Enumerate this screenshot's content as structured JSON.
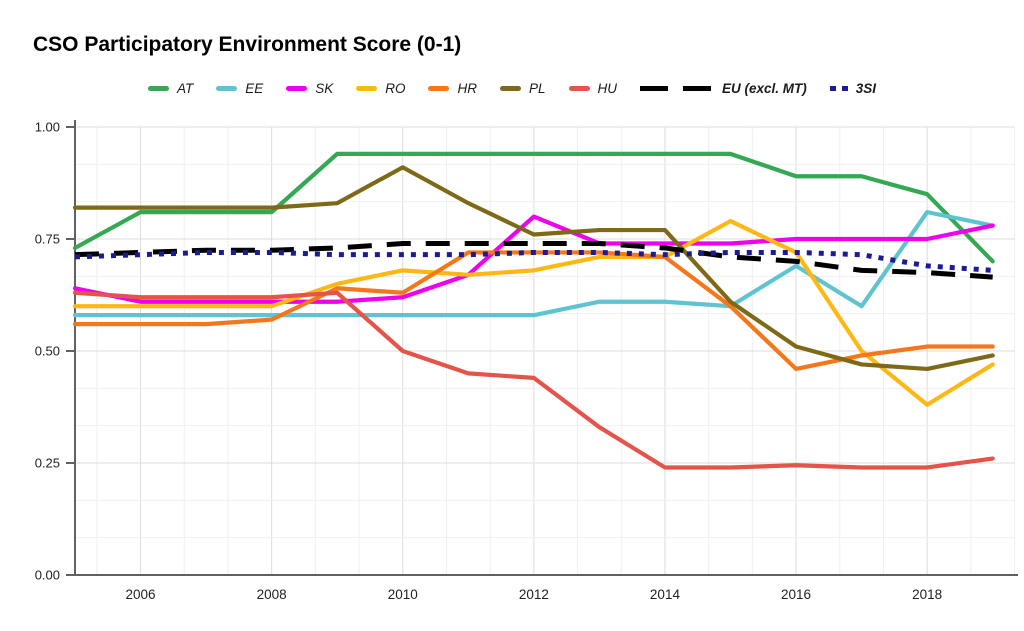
{
  "title": "CSO Participatory Environment Score (0-1)",
  "chart_data": {
    "type": "line",
    "title": "CSO Participatory Environment Score (0-1)",
    "xlabel": "",
    "ylabel": "",
    "xlim": [
      2005,
      2019.33
    ],
    "ylim": [
      0,
      1
    ],
    "grid": "major and minor, light gray, minors divide majors in thirds",
    "legend_position": "top",
    "x": [
      2005,
      2006,
      2007,
      2008,
      2009,
      2010,
      2011,
      2012,
      2013,
      2014,
      2015,
      2016,
      2017,
      2018,
      2019
    ],
    "x_ticks": [
      2006,
      2008,
      2010,
      2012,
      2014,
      2016,
      2018
    ],
    "x_tick_labels": [
      "2006",
      "2008",
      "2010",
      "2012",
      "2014",
      "2016",
      "2018"
    ],
    "y_ticks": [
      0,
      0.25,
      0.5,
      0.75,
      1
    ],
    "y_tick_labels": [
      "0.00",
      "0.25",
      "0.50",
      "0.75",
      "1.00"
    ],
    "series": [
      {
        "name": "AT",
        "color": "#34A853",
        "style": "solid",
        "emphasis": false,
        "values": [
          0.73,
          0.81,
          0.81,
          0.81,
          0.94,
          0.94,
          0.94,
          0.94,
          0.94,
          0.94,
          0.94,
          0.89,
          0.89,
          0.85,
          0.7
        ]
      },
      {
        "name": "EE",
        "color": "#5FC4CF",
        "style": "solid",
        "emphasis": false,
        "values": [
          0.58,
          0.58,
          0.58,
          0.58,
          0.58,
          0.58,
          0.58,
          0.58,
          0.61,
          0.61,
          0.6,
          0.69,
          0.6,
          0.81,
          0.78
        ]
      },
      {
        "name": "SK",
        "color": "#EE00EE",
        "style": "solid",
        "emphasis": false,
        "values": [
          0.64,
          0.61,
          0.61,
          0.61,
          0.61,
          0.62,
          0.67,
          0.8,
          0.74,
          0.74,
          0.74,
          0.75,
          0.75,
          0.75,
          0.78
        ]
      },
      {
        "name": "RO",
        "color": "#FDB813",
        "style": "solid",
        "emphasis": false,
        "values": [
          0.6,
          0.6,
          0.6,
          0.6,
          0.65,
          0.68,
          0.67,
          0.68,
          0.71,
          0.71,
          0.79,
          0.72,
          0.5,
          0.38,
          0.47
        ]
      },
      {
        "name": "HR",
        "color": "#F4771B",
        "style": "solid",
        "emphasis": false,
        "values": [
          0.56,
          0.56,
          0.56,
          0.57,
          0.64,
          0.63,
          0.72,
          0.72,
          0.72,
          0.71,
          0.6,
          0.46,
          0.49,
          0.51,
          0.51
        ]
      },
      {
        "name": "PL",
        "color": "#7D6918",
        "style": "solid",
        "emphasis": false,
        "values": [
          0.82,
          0.82,
          0.82,
          0.82,
          0.83,
          0.91,
          0.83,
          0.76,
          0.77,
          0.77,
          0.61,
          0.51,
          0.47,
          0.46,
          0.49
        ]
      },
      {
        "name": "HU",
        "color": "#E4544A",
        "style": "solid",
        "emphasis": false,
        "values": [
          0.63,
          0.62,
          0.62,
          0.62,
          0.63,
          0.5,
          0.45,
          0.44,
          0.33,
          0.24,
          0.24,
          0.245,
          0.24,
          0.24,
          0.26
        ]
      },
      {
        "name": "EU (excl. MT)",
        "color": "#000000",
        "style": "dashed",
        "emphasis": true,
        "values": [
          0.715,
          0.72,
          0.725,
          0.725,
          0.73,
          0.74,
          0.74,
          0.74,
          0.74,
          0.73,
          0.71,
          0.7,
          0.68,
          0.675,
          0.665
        ]
      },
      {
        "name": "3SI",
        "color": "#1B1B99",
        "style": "dotted",
        "emphasis": true,
        "values": [
          0.71,
          0.715,
          0.72,
          0.72,
          0.715,
          0.715,
          0.715,
          0.72,
          0.72,
          0.715,
          0.72,
          0.72,
          0.715,
          0.69,
          0.68
        ]
      }
    ]
  },
  "axis_colors": {
    "axis_line": "#616161",
    "major_grid": "#DCDCDC",
    "minor_grid": "#EFEFEF",
    "tick_label": "#222222"
  }
}
